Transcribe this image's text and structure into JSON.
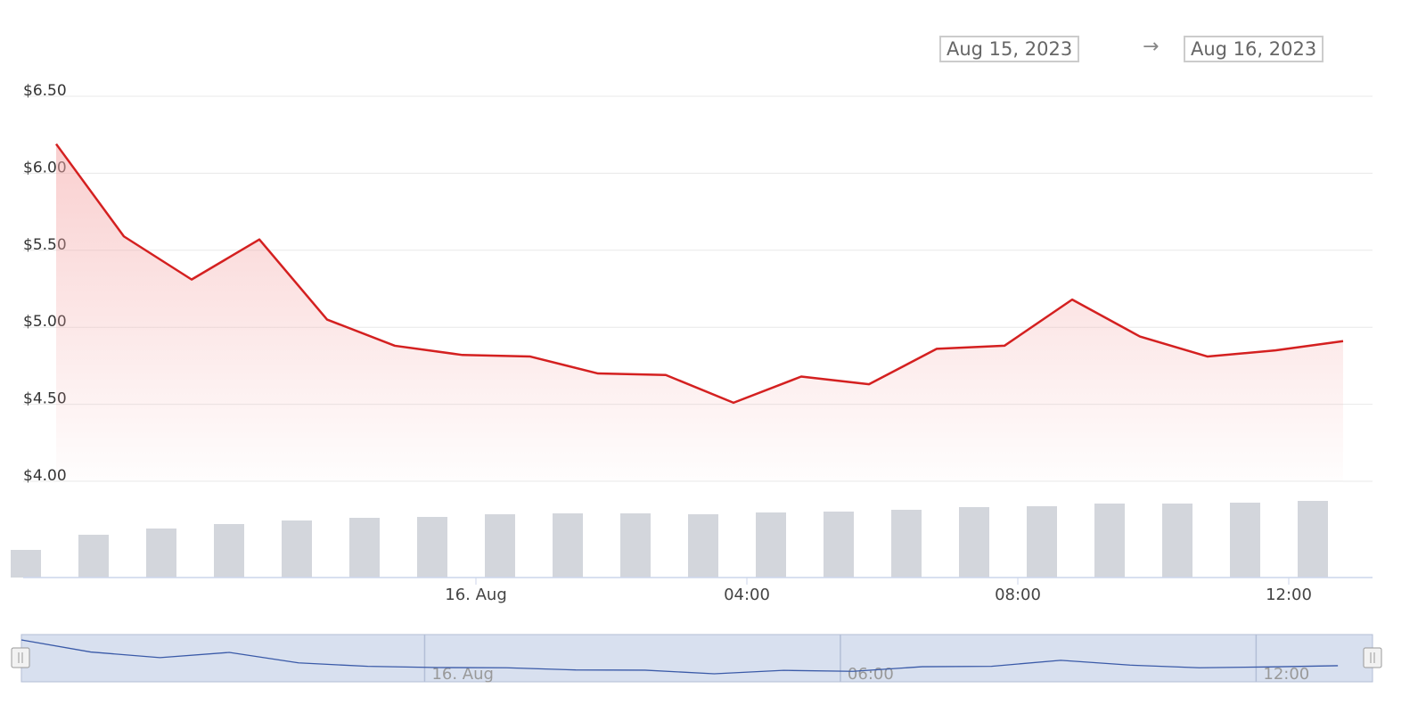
{
  "range_selector": {
    "from": "Aug 15, 2023",
    "arrow": "→",
    "to": "Aug 16, 2023"
  },
  "colors": {
    "price_line": "#d42020",
    "price_area": "#f4a8a8",
    "volume_bar": "#d3d6dc",
    "grid": "#e8e8e8",
    "axis_text": "#333333",
    "x_axis_text": "#444444",
    "navigator_fill": "#d8e0ef",
    "navigator_line": "#3a5aa8",
    "navigator_text": "#999999",
    "navigator_border": "#b3bed6"
  },
  "chart_data": [
    {
      "type": "area",
      "name": "price",
      "y_ticks": [
        "$4.00",
        "$4.50",
        "$5.00",
        "$5.50",
        "$6.00",
        "$6.50"
      ],
      "y_tick_values": [
        4.0,
        4.5,
        5.0,
        5.5,
        6.0,
        6.5
      ],
      "ylim": [
        4.0,
        6.5
      ],
      "x_ticks": [
        "16. Aug",
        "04:00",
        "08:00",
        "12:00"
      ],
      "x_tick_hours": [
        24,
        28,
        32,
        36
      ],
      "x_unit": "hours from Aug 15, 2023 00:00",
      "x": [
        18,
        19,
        20,
        21,
        22,
        23,
        24,
        25,
        26,
        27,
        28,
        29,
        30,
        31,
        32,
        33,
        34,
        35,
        36,
        37
      ],
      "values": [
        6.19,
        5.59,
        5.31,
        5.57,
        5.05,
        4.88,
        4.82,
        4.81,
        4.7,
        4.69,
        4.51,
        4.68,
        4.63,
        4.86,
        4.88,
        5.18,
        4.94,
        4.81,
        4.85,
        4.91
      ],
      "grid": true
    },
    {
      "type": "bar",
      "name": "volume",
      "x": [
        17.5,
        18.5,
        19.5,
        20.5,
        21.5,
        22.5,
        23.5,
        24.5,
        25.5,
        26.5,
        27.5,
        28.5,
        29.5,
        30.5,
        31.5,
        32.5,
        33.5,
        34.5,
        35.5,
        36.5
      ],
      "values": [
        31,
        48,
        55,
        60,
        64,
        67,
        68,
        71,
        72,
        72,
        71,
        73,
        74,
        76,
        79,
        80,
        83,
        83,
        84,
        86
      ]
    },
    {
      "type": "line",
      "name": "navigator",
      "x_ticks": [
        "16. Aug",
        "06:00",
        "12:00"
      ],
      "x_tick_hours": [
        24,
        30,
        36
      ],
      "x": [
        18,
        19,
        20,
        21,
        22,
        23,
        24,
        25,
        26,
        27,
        28,
        29,
        30,
        31,
        32,
        33,
        34,
        35,
        36,
        37
      ],
      "values": [
        6.19,
        5.59,
        5.31,
        5.57,
        5.05,
        4.88,
        4.82,
        4.81,
        4.7,
        4.69,
        4.51,
        4.68,
        4.63,
        4.86,
        4.88,
        5.18,
        4.94,
        4.81,
        4.85,
        4.91
      ]
    }
  ]
}
